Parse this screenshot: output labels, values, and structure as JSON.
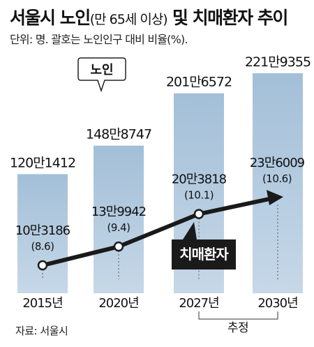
{
  "title": {
    "main": "서울시 노인",
    "paren": "(만 65세 이상)",
    "rest": " 및 치매환자 추이"
  },
  "subtitle": "단위: 명. 괄호는 노인인구 대비 비율(%).",
  "source": "자료: 서울시",
  "colors": {
    "bar": "#a9c4dc",
    "line": "#1a1a1a",
    "label_box": "#1a1a1a",
    "label_box_text": "#ffffff",
    "guide": "#555555"
  },
  "chart_data": {
    "type": "bar",
    "categories": [
      "2015년",
      "2020년",
      "2027년",
      "2030년"
    ],
    "series": [
      {
        "name": "노인",
        "type": "bar",
        "values": [
          1201412,
          1488747,
          2016572,
          2219355
        ],
        "labels": [
          "120만1412",
          "148만8747",
          "201만6572",
          "221만9355"
        ]
      },
      {
        "name": "치매환자",
        "type": "line",
        "values": [
          103186,
          139942,
          203818,
          236009
        ],
        "labels": [
          "10만3186",
          "13만9942",
          "20만3818",
          "23만6009"
        ],
        "ratios": [
          "(8.6)",
          "(9.4)",
          "(10.1)",
          "(10.6)"
        ]
      }
    ],
    "annotation": "추정",
    "legend": {
      "bar_label": "노인",
      "line_label": "치매환자"
    }
  }
}
